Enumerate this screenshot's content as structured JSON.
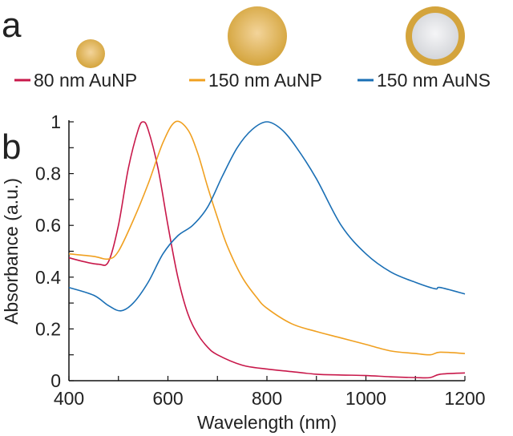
{
  "panel_a": {
    "label": "a",
    "particles": [
      {
        "name": "80 nm AuNP",
        "type": "solid"
      },
      {
        "name": "150 nm AuNP",
        "type": "solid"
      },
      {
        "name": "150 nm AuNS",
        "type": "shell"
      }
    ],
    "gold_color": "#d4a43c"
  },
  "panel_b": {
    "label": "b"
  },
  "chart_data": {
    "type": "line",
    "xlabel": "Wavelength (nm)",
    "ylabel": "Absorbance (a.u.)",
    "xlim": [
      400,
      1200
    ],
    "ylim": [
      0,
      1
    ],
    "xticks": [
      "400",
      "600",
      "800",
      "1000",
      "1200"
    ],
    "yticks": [
      "0",
      "0.2",
      "0.4",
      "0.6",
      "0.8",
      "1"
    ],
    "grid": false,
    "legend": "top",
    "series": [
      {
        "name": "80 nm AuNP",
        "color": "#c8184a",
        "x": [
          400,
          430,
          460,
          480,
          500,
          520,
          540,
          550,
          560,
          580,
          600,
          620,
          640,
          660,
          680,
          700,
          750,
          800,
          850,
          900,
          950,
          1000,
          1050,
          1100,
          1130,
          1150,
          1200
        ],
        "y": [
          0.475,
          0.46,
          0.45,
          0.46,
          0.6,
          0.82,
          0.97,
          1.0,
          0.97,
          0.82,
          0.6,
          0.4,
          0.26,
          0.18,
          0.13,
          0.1,
          0.06,
          0.045,
          0.035,
          0.025,
          0.022,
          0.02,
          0.015,
          0.012,
          0.012,
          0.025,
          0.03
        ]
      },
      {
        "name": "150 nm AuNP",
        "color": "#f0a020",
        "x": [
          400,
          450,
          480,
          500,
          530,
          560,
          590,
          615,
          640,
          660,
          680,
          700,
          720,
          750,
          780,
          800,
          850,
          900,
          950,
          1000,
          1050,
          1100,
          1130,
          1150,
          1200
        ],
        "y": [
          0.49,
          0.48,
          0.47,
          0.5,
          0.62,
          0.76,
          0.92,
          1.0,
          0.97,
          0.88,
          0.75,
          0.63,
          0.52,
          0.4,
          0.32,
          0.28,
          0.22,
          0.19,
          0.165,
          0.14,
          0.115,
          0.105,
          0.1,
          0.11,
          0.105
        ]
      },
      {
        "name": "150 nm AuNS",
        "color": "#1a6fb5",
        "x": [
          400,
          450,
          480,
          505,
          530,
          560,
          590,
          620,
          650,
          680,
          710,
          740,
          770,
          800,
          830,
          860,
          900,
          950,
          1000,
          1050,
          1100,
          1140,
          1150,
          1200
        ],
        "y": [
          0.36,
          0.33,
          0.29,
          0.27,
          0.3,
          0.38,
          0.49,
          0.56,
          0.6,
          0.67,
          0.79,
          0.9,
          0.97,
          1.0,
          0.97,
          0.9,
          0.78,
          0.6,
          0.49,
          0.42,
          0.38,
          0.355,
          0.36,
          0.335
        ]
      }
    ]
  }
}
